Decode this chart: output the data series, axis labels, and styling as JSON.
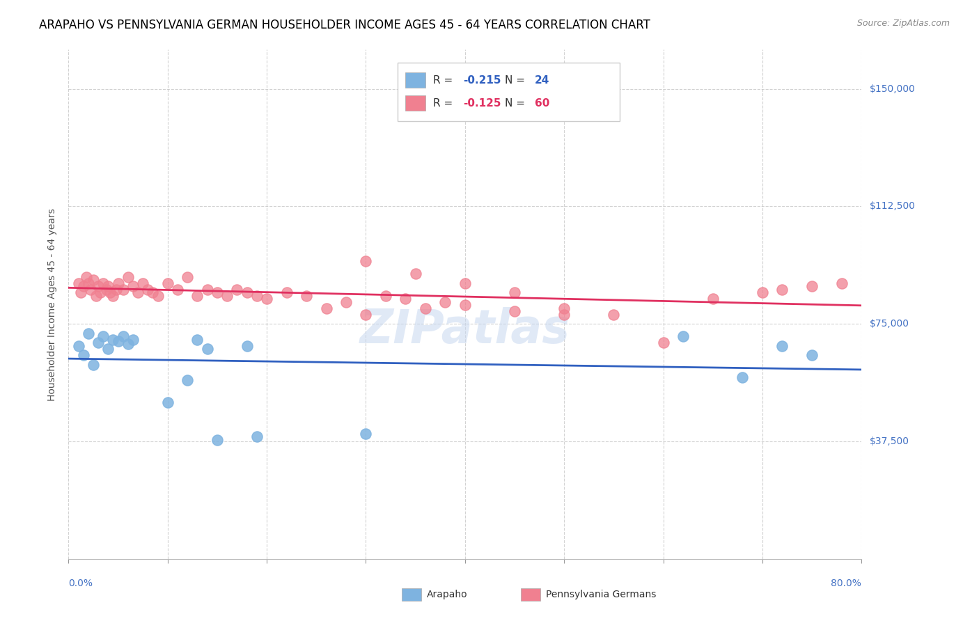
{
  "title": "ARAPAHO VS PENNSYLVANIA GERMAN HOUSEHOLDER INCOME AGES 45 - 64 YEARS CORRELATION CHART",
  "source": "Source: ZipAtlas.com",
  "ylabel": "Householder Income Ages 45 - 64 years",
  "ytick_labels": [
    "$37,500",
    "$75,000",
    "$112,500",
    "$150,000"
  ],
  "ytick_values": [
    37500,
    75000,
    112500,
    150000
  ],
  "ymin": 0,
  "ymax": 162500,
  "xmin": 0.0,
  "xmax": 0.8,
  "legend_blue_r": "-0.215",
  "legend_blue_n": "24",
  "legend_pink_r": "-0.125",
  "legend_pink_n": "60",
  "blue_color": "#7eb3e0",
  "pink_color": "#f08090",
  "blue_line_color": "#3060c0",
  "pink_line_color": "#e03060",
  "watermark": "ZIPatlas",
  "blue_scatter_x": [
    0.01,
    0.015,
    0.02,
    0.025,
    0.03,
    0.035,
    0.04,
    0.045,
    0.05,
    0.055,
    0.06,
    0.065,
    0.12,
    0.13,
    0.14,
    0.18,
    0.19,
    0.3,
    0.62,
    0.68,
    0.72,
    0.75,
    0.1,
    0.15
  ],
  "blue_scatter_y": [
    68000,
    65000,
    72000,
    62000,
    69000,
    71000,
    67000,
    70000,
    69500,
    71000,
    68500,
    70000,
    57000,
    70000,
    67000,
    68000,
    39000,
    40000,
    71000,
    58000,
    68000,
    65000,
    50000,
    38000
  ],
  "pink_scatter_x": [
    0.01,
    0.012,
    0.015,
    0.018,
    0.02,
    0.022,
    0.025,
    0.028,
    0.03,
    0.032,
    0.035,
    0.038,
    0.04,
    0.042,
    0.045,
    0.048,
    0.05,
    0.055,
    0.06,
    0.065,
    0.07,
    0.075,
    0.08,
    0.085,
    0.09,
    0.1,
    0.11,
    0.12,
    0.13,
    0.14,
    0.15,
    0.16,
    0.17,
    0.18,
    0.19,
    0.2,
    0.22,
    0.24,
    0.26,
    0.28,
    0.3,
    0.32,
    0.34,
    0.36,
    0.38,
    0.4,
    0.45,
    0.5,
    0.55,
    0.6,
    0.65,
    0.7,
    0.72,
    0.75,
    0.78,
    0.3,
    0.35,
    0.4,
    0.45,
    0.5
  ],
  "pink_scatter_y": [
    88000,
    85000,
    87000,
    90000,
    88000,
    86000,
    89000,
    84000,
    87000,
    85000,
    88000,
    86000,
    87000,
    85000,
    84000,
    86000,
    88000,
    86000,
    90000,
    87000,
    85000,
    88000,
    86000,
    85000,
    84000,
    88000,
    86000,
    90000,
    84000,
    86000,
    85000,
    84000,
    86000,
    85000,
    84000,
    83000,
    85000,
    84000,
    80000,
    82000,
    78000,
    84000,
    83000,
    80000,
    82000,
    81000,
    79000,
    80000,
    78000,
    69000,
    83000,
    85000,
    86000,
    87000,
    88000,
    95000,
    91000,
    88000,
    85000,
    78000
  ],
  "title_fontsize": 12,
  "axis_label_fontsize": 10,
  "tick_fontsize": 10,
  "legend_fontsize": 11,
  "watermark_fontsize": 48,
  "source_fontsize": 9
}
